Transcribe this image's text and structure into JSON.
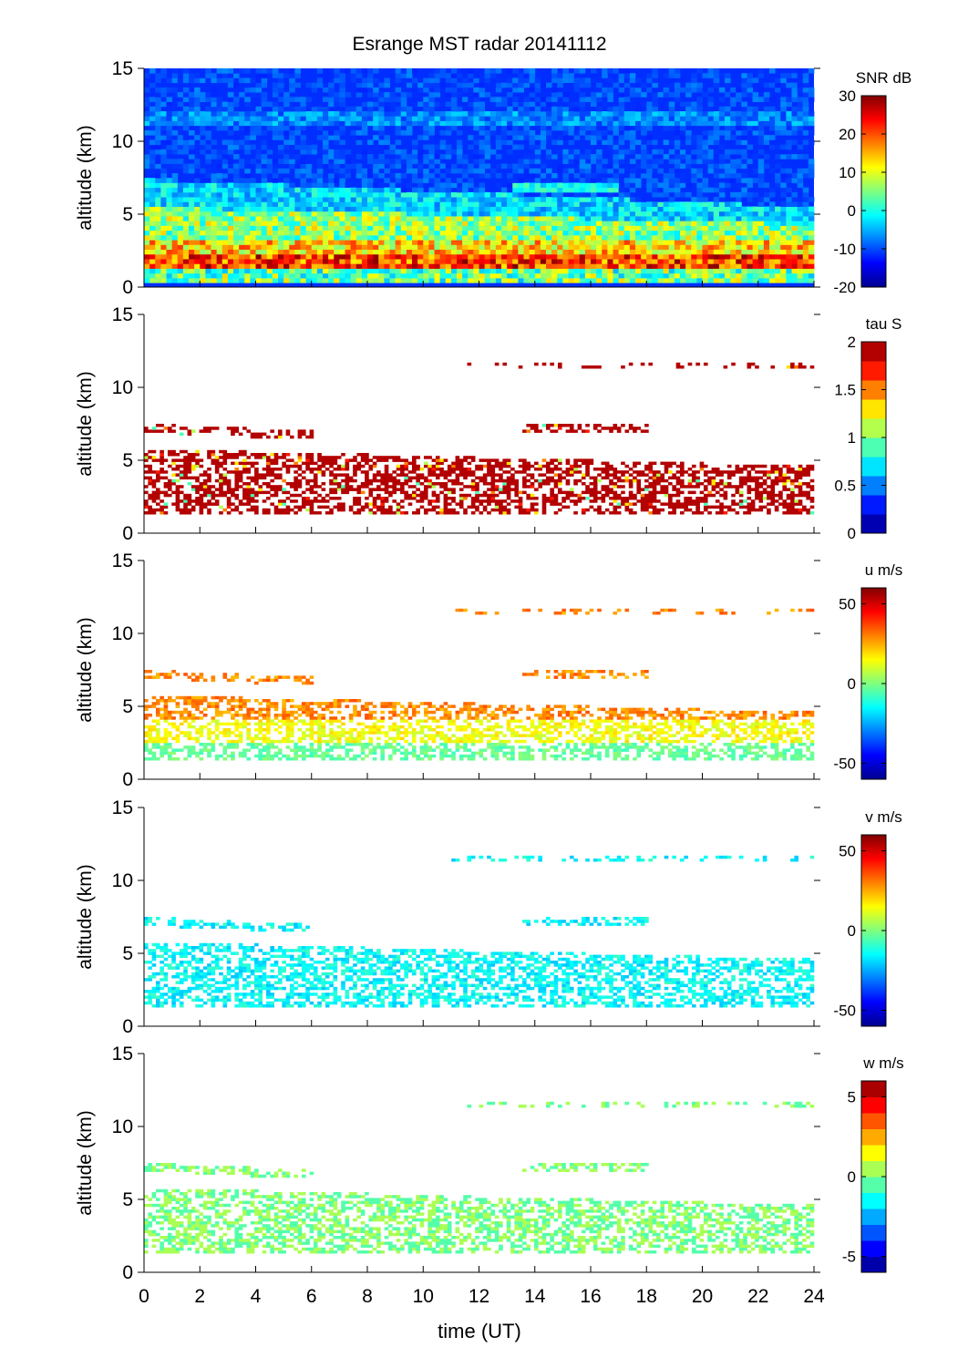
{
  "title": "Esrange MST radar 20141112",
  "xlabel": "time (UT)",
  "chart_data": {
    "type": "heatmap",
    "title": "Esrange MST radar 20141112",
    "xlabel": "time (UT)",
    "xlim": [
      0,
      24
    ],
    "xticks": [
      0,
      2,
      4,
      6,
      8,
      10,
      12,
      14,
      16,
      18,
      20,
      22,
      24
    ],
    "panels": [
      {
        "variable": "SNR",
        "colorbar_label": "SNR dB",
        "ylabel": "altitude (km)",
        "ylim": [
          0,
          15
        ],
        "yticks": [
          0,
          5,
          10,
          15
        ],
        "clim": [
          -20,
          30
        ],
        "cticks": [
          -20,
          -10,
          0,
          10,
          20,
          30
        ],
        "colormap": "jet",
        "discrete_levels": 0,
        "description": "Full coverage; strong echoes (15-30 dB) near 1.5-3 km, layered 5-15 dB structures 3-7 km, weak background -15 to -5 dB above 8 km, faint layers near 11-12 km"
      },
      {
        "variable": "tau",
        "colorbar_label": "tau S",
        "ylabel": "altitude (km)",
        "ylim": [
          0,
          15
        ],
        "yticks": [
          0,
          5,
          10,
          15
        ],
        "clim": [
          0,
          2
        ],
        "cticks": [
          0,
          0.5,
          1,
          1.5,
          2
        ],
        "colormap": "jet",
        "discrete_levels": 10,
        "description": "Sparse; mostly saturated 2 s (dark red) between 1.5 and 6 km, scattered points near 7 km and 11-12 km"
      },
      {
        "variable": "u",
        "colorbar_label": "u m/s",
        "ylabel": "altitude (km)",
        "ylim": [
          0,
          15
        ],
        "yticks": [
          0,
          5,
          10,
          15
        ],
        "clim": [
          -60,
          60
        ],
        "cticks": [
          -50,
          0,
          50
        ],
        "colormap": "jet",
        "discrete_levels": 0,
        "description": "Zonal wind increasing with height: about -10 to 0 m/s near 2 km, 10-20 m/s near 4 km, 25-35 m/s near 5-7 km"
      },
      {
        "variable": "v",
        "colorbar_label": "v m/s",
        "ylabel": "altitude (km)",
        "ylim": [
          0,
          15
        ],
        "yticks": [
          0,
          5,
          10,
          15
        ],
        "clim": [
          -60,
          60
        ],
        "cticks": [
          -50,
          0,
          50
        ],
        "colormap": "jet",
        "discrete_levels": 0,
        "description": "Meridional wind mostly -10 to -25 m/s throughout"
      },
      {
        "variable": "w",
        "colorbar_label": "w m/s",
        "ylabel": "altitude (km)",
        "ylim": [
          0,
          15
        ],
        "yticks": [
          0,
          5,
          10,
          15
        ],
        "clim": [
          -6,
          6
        ],
        "cticks": [
          -5,
          0,
          5
        ],
        "colormap": "jet",
        "discrete_levels": 12,
        "description": "Vertical wind near 0 m/s (about -1 to 1) with a few isolated extreme points"
      }
    ]
  }
}
